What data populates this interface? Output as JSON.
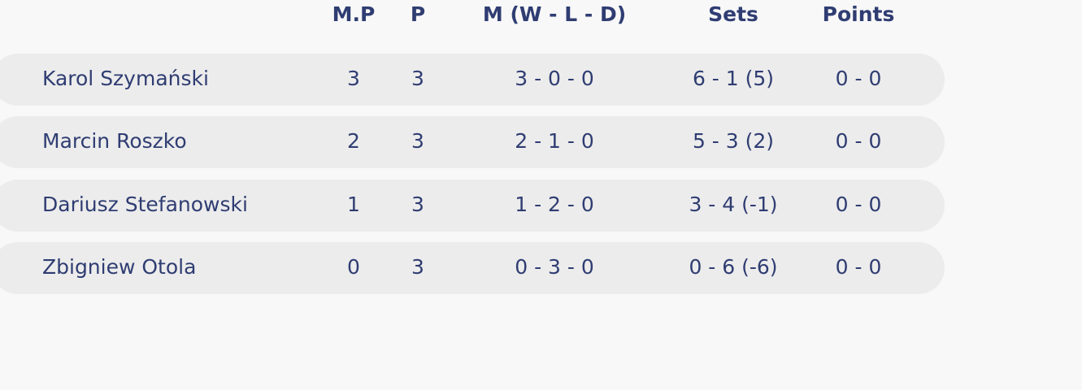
{
  "header": {
    "mp": "M.P",
    "p": "P",
    "m": "M (W - L - D)",
    "sets": "Sets",
    "points": "Points"
  },
  "rows": [
    {
      "name": "Karol Szymański",
      "mp": "3",
      "p": "3",
      "m": "3 - 0 - 0",
      "sets": "6 - 1 (5)",
      "points": "0 - 0"
    },
    {
      "name": "Marcin Roszko",
      "mp": "2",
      "p": "3",
      "m": "2 - 1 - 0",
      "sets": "5 - 3 (2)",
      "points": "0 - 0"
    },
    {
      "name": "Dariusz Stefanowski",
      "mp": "1",
      "p": "3",
      "m": "1 - 2 - 0",
      "sets": "3 - 4 (-1)",
      "points": "0 - 0"
    },
    {
      "name": "Zbigniew Otola",
      "mp": "0",
      "p": "3",
      "m": "0 - 3 - 0",
      "sets": "0 - 6 (-6)",
      "points": "0 - 0"
    }
  ]
}
